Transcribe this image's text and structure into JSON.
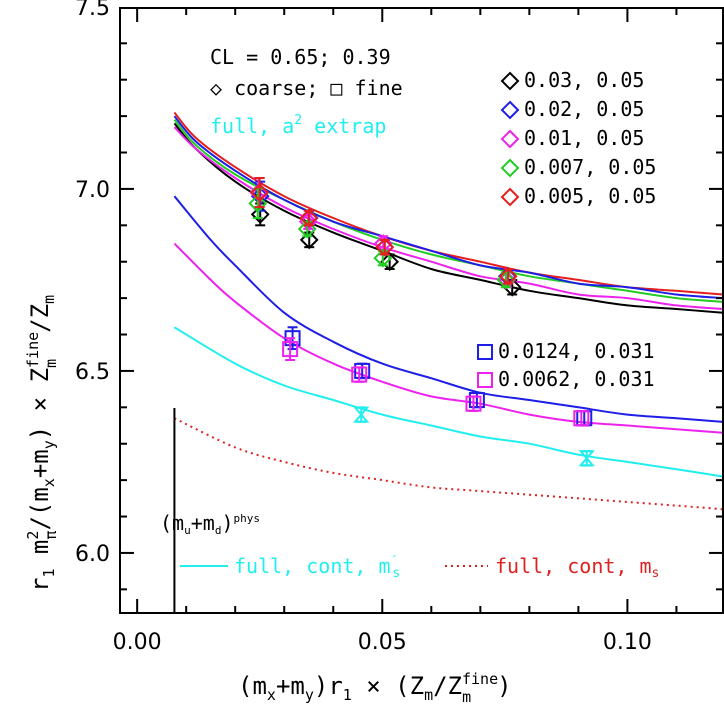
{
  "chart_data": {
    "type": "scatter",
    "xlabel_main": "(m",
    "xlabel_parts": {
      "sub1": "x",
      "mid": "+m",
      "sub2": "y",
      "close": ")r",
      "sub3": "1",
      "times": " × (Z",
      "sub4": "m",
      "slash": "/Z",
      "sup5": "fine",
      "sub5": "m",
      "end": ")"
    },
    "ylabel_parts": {
      "r": "r",
      "sub1": "1",
      "m": " m",
      "sup2": "2",
      "subpi": "π",
      "rest": "/(m",
      "subx": "x",
      "plus": "+m",
      "suby": "y",
      "close": ") × Z",
      "supfine": "fine",
      "subm": "m",
      "slash": "/Z",
      "subm2": "m"
    },
    "xlim": [
      -0.0035,
      0.1195
    ],
    "ylim": [
      5.835,
      7.497
    ],
    "x_ticks": [
      0.0,
      0.05,
      0.1
    ],
    "x_tick_labels": [
      "0.00",
      "0.05",
      "0.10"
    ],
    "y_ticks": [
      6.0,
      6.5,
      7.0,
      7.5
    ],
    "y_tick_labels": [
      "6.0",
      "6.5",
      "7.0",
      "7.5"
    ],
    "colors": {
      "black": "#000000",
      "blue": "#1e1ee6",
      "magenta": "#ee22ee",
      "green": "#22cc22",
      "red": "#e61e1e",
      "cyan": "#22eeee",
      "red_dotted": "#dd2222"
    },
    "annotations": {
      "cl_text": "CL = 0.65; 0.39",
      "coarse_fine_text": "◇ coarse; □ fine",
      "full_extrap_text": "full, a",
      "full_extrap_sup": "2",
      "full_extrap_end": " extrap",
      "phys_text": "(m",
      "phys_u": "u",
      "phys_plus": "+m",
      "phys_d": "d",
      "phys_close": ")",
      "phys_sup": "phys"
    },
    "legend_coarse": [
      {
        "label": "0.03, 0.05",
        "color": "#000000"
      },
      {
        "label": "0.02, 0.05",
        "color": "#1e1ee6"
      },
      {
        "label": "0.01, 0.05",
        "color": "#ee22ee"
      },
      {
        "label": "0.007, 0.05",
        "color": "#22cc22"
      },
      {
        "label": "0.005, 0.05",
        "color": "#e61e1e"
      }
    ],
    "legend_fine": [
      {
        "label": "0.0124, 0.031",
        "color": "#1e1ee6"
      },
      {
        "label": "0.0062, 0.031",
        "color": "#ee22ee"
      }
    ],
    "legend_bottom": [
      {
        "label": "full, cont, m",
        "prime": "′",
        "sub": "s",
        "color": "#22eeee",
        "style": "solid"
      },
      {
        "label": "full, cont, m",
        "prime": "",
        "sub": "s",
        "color": "#dd2222",
        "style": "dotted"
      }
    ],
    "physical_point_x": 0.0076,
    "curves": [
      {
        "name": "0.005, 0.05",
        "color": "#e61e1e",
        "dash": "",
        "x": [
          0.0076,
          0.012,
          0.02,
          0.03,
          0.04,
          0.05,
          0.06,
          0.07,
          0.08,
          0.09,
          0.1,
          0.11,
          0.1195
        ],
        "y": [
          7.21,
          7.14,
          7.06,
          6.98,
          6.92,
          6.87,
          6.83,
          6.8,
          6.77,
          6.75,
          6.73,
          6.72,
          6.71
        ]
      },
      {
        "name": "0.007, 0.05",
        "color": "#22cc22",
        "dash": "",
        "x": [
          0.0076,
          0.012,
          0.02,
          0.03,
          0.04,
          0.05,
          0.06,
          0.07,
          0.08,
          0.09,
          0.1,
          0.11,
          0.1195
        ],
        "y": [
          7.19,
          7.12,
          7.04,
          6.97,
          6.91,
          6.86,
          6.82,
          6.79,
          6.76,
          6.74,
          6.72,
          6.7,
          6.69
        ]
      },
      {
        "name": "0.02, 0.05",
        "color": "#1e1ee6",
        "dash": "",
        "x": [
          0.0076,
          0.012,
          0.02,
          0.03,
          0.04,
          0.05,
          0.06,
          0.07,
          0.08,
          0.09,
          0.1,
          0.11,
          0.1195
        ],
        "y": [
          7.2,
          7.13,
          7.05,
          6.97,
          6.91,
          6.87,
          6.83,
          6.79,
          6.77,
          6.74,
          6.73,
          6.71,
          6.7
        ]
      },
      {
        "name": "0.03, 0.05",
        "color": "#000000",
        "dash": "",
        "x": [
          0.0076,
          0.012,
          0.02,
          0.03,
          0.04,
          0.05,
          0.06,
          0.07,
          0.08,
          0.09,
          0.1,
          0.11,
          0.1195
        ],
        "y": [
          7.18,
          7.11,
          7.02,
          6.94,
          6.88,
          6.83,
          6.78,
          6.75,
          6.72,
          6.7,
          6.68,
          6.67,
          6.66
        ]
      },
      {
        "name": "0.01, 0.05",
        "color": "#ee22ee",
        "dash": "",
        "x": [
          0.0076,
          0.012,
          0.02,
          0.03,
          0.04,
          0.05,
          0.06,
          0.07,
          0.08,
          0.09,
          0.1,
          0.11,
          0.1195
        ],
        "y": [
          7.17,
          7.11,
          7.03,
          6.95,
          6.89,
          6.84,
          6.8,
          6.76,
          6.74,
          6.71,
          6.7,
          6.68,
          6.67
        ]
      },
      {
        "name": "0.0124, 0.031",
        "color": "#1e1ee6",
        "dash": "",
        "x": [
          0.0076,
          0.015,
          0.02,
          0.03,
          0.04,
          0.05,
          0.06,
          0.07,
          0.08,
          0.09,
          0.1,
          0.11,
          0.1195
        ],
        "y": [
          6.98,
          6.86,
          6.79,
          6.66,
          6.58,
          6.52,
          6.48,
          6.44,
          6.42,
          6.4,
          6.38,
          6.37,
          6.36
        ]
      },
      {
        "name": "0.0062, 0.031",
        "color": "#ee22ee",
        "dash": "",
        "x": [
          0.0076,
          0.015,
          0.02,
          0.03,
          0.04,
          0.05,
          0.06,
          0.07,
          0.08,
          0.09,
          0.1,
          0.11,
          0.1195
        ],
        "y": [
          6.85,
          6.75,
          6.69,
          6.59,
          6.52,
          6.47,
          6.43,
          6.41,
          6.38,
          6.36,
          6.35,
          6.34,
          6.33
        ]
      },
      {
        "name": "full, cont, m's",
        "color": "#22eeee",
        "dash": "",
        "x": [
          0.0076,
          0.02,
          0.03,
          0.04,
          0.05,
          0.06,
          0.07,
          0.08,
          0.09,
          0.1,
          0.11,
          0.1195
        ],
        "y": [
          6.62,
          6.52,
          6.46,
          6.42,
          6.38,
          6.35,
          6.32,
          6.3,
          6.27,
          6.25,
          6.23,
          6.21
        ]
      },
      {
        "name": "full, cont, ms",
        "color": "#dd2222",
        "dash": "2,4",
        "x": [
          0.0076,
          0.02,
          0.03,
          0.04,
          0.05,
          0.06,
          0.07,
          0.08,
          0.09,
          0.1,
          0.11,
          0.1195
        ],
        "y": [
          6.37,
          6.29,
          6.25,
          6.22,
          6.2,
          6.18,
          6.17,
          6.16,
          6.15,
          6.14,
          6.13,
          6.12
        ]
      }
    ],
    "points": [
      {
        "series": "0.03, 0.05",
        "shape": "diamond",
        "color": "#000000",
        "x": [
          0.0251,
          0.0351,
          0.0515,
          0.0765
        ],
        "y": [
          6.93,
          6.86,
          6.8,
          6.73
        ],
        "err": [
          0.03,
          0.02,
          0.02,
          0.02
        ]
      },
      {
        "series": "0.02, 0.05",
        "shape": "diamond",
        "color": "#1e1ee6",
        "x": [
          0.0251,
          0.0351,
          0.0505,
          0.0755
        ],
        "y": [
          6.98,
          6.92,
          6.84,
          6.76
        ],
        "err": [
          0.04,
          0.02,
          0.02,
          0.02
        ]
      },
      {
        "series": "0.01, 0.05",
        "shape": "diamond",
        "color": "#ee22ee",
        "x": [
          0.0248,
          0.0349,
          0.0502,
          0.0754
        ],
        "y": [
          6.99,
          6.91,
          6.85,
          6.75
        ],
        "err": [
          0.04,
          0.02,
          0.02,
          0.02
        ]
      },
      {
        "series": "0.007, 0.05",
        "shape": "diamond",
        "color": "#22cc22",
        "x": [
          0.0246,
          0.0347,
          0.0501,
          0.0752
        ],
        "y": [
          6.96,
          6.89,
          6.81,
          6.75
        ],
        "err": [
          0.04,
          0.02,
          0.02,
          0.02
        ]
      },
      {
        "series": "0.005, 0.05",
        "shape": "diamond",
        "color": "#e61e1e",
        "x": [
          0.025,
          0.035,
          0.0505,
          0.0757
        ],
        "y": [
          6.99,
          6.92,
          6.84,
          6.76
        ],
        "err": [
          0.04,
          0.02,
          0.02,
          0.02
        ]
      },
      {
        "series": "0.0124, 0.031",
        "shape": "square",
        "color": "#1e1ee6",
        "x": [
          0.0317,
          0.0459,
          0.0693,
          0.0912
        ],
        "y": [
          6.59,
          6.5,
          6.42,
          6.37
        ],
        "err": [
          0.03,
          0.02,
          0.02,
          0.02
        ]
      },
      {
        "series": "0.0062, 0.031",
        "shape": "square",
        "color": "#ee22ee",
        "x": [
          0.0312,
          0.0453,
          0.0686,
          0.0906
        ],
        "y": [
          6.56,
          6.49,
          6.41,
          6.37
        ],
        "err": [
          0.03,
          0.02,
          0.02,
          0.02
        ]
      },
      {
        "series": "full, a^2 extrap",
        "shape": "hourglass",
        "color": "#22eeee",
        "x": [
          0.0457,
          0.0917
        ],
        "y": [
          6.38,
          6.26
        ],
        "err": [
          0.02,
          0.02
        ]
      }
    ]
  }
}
